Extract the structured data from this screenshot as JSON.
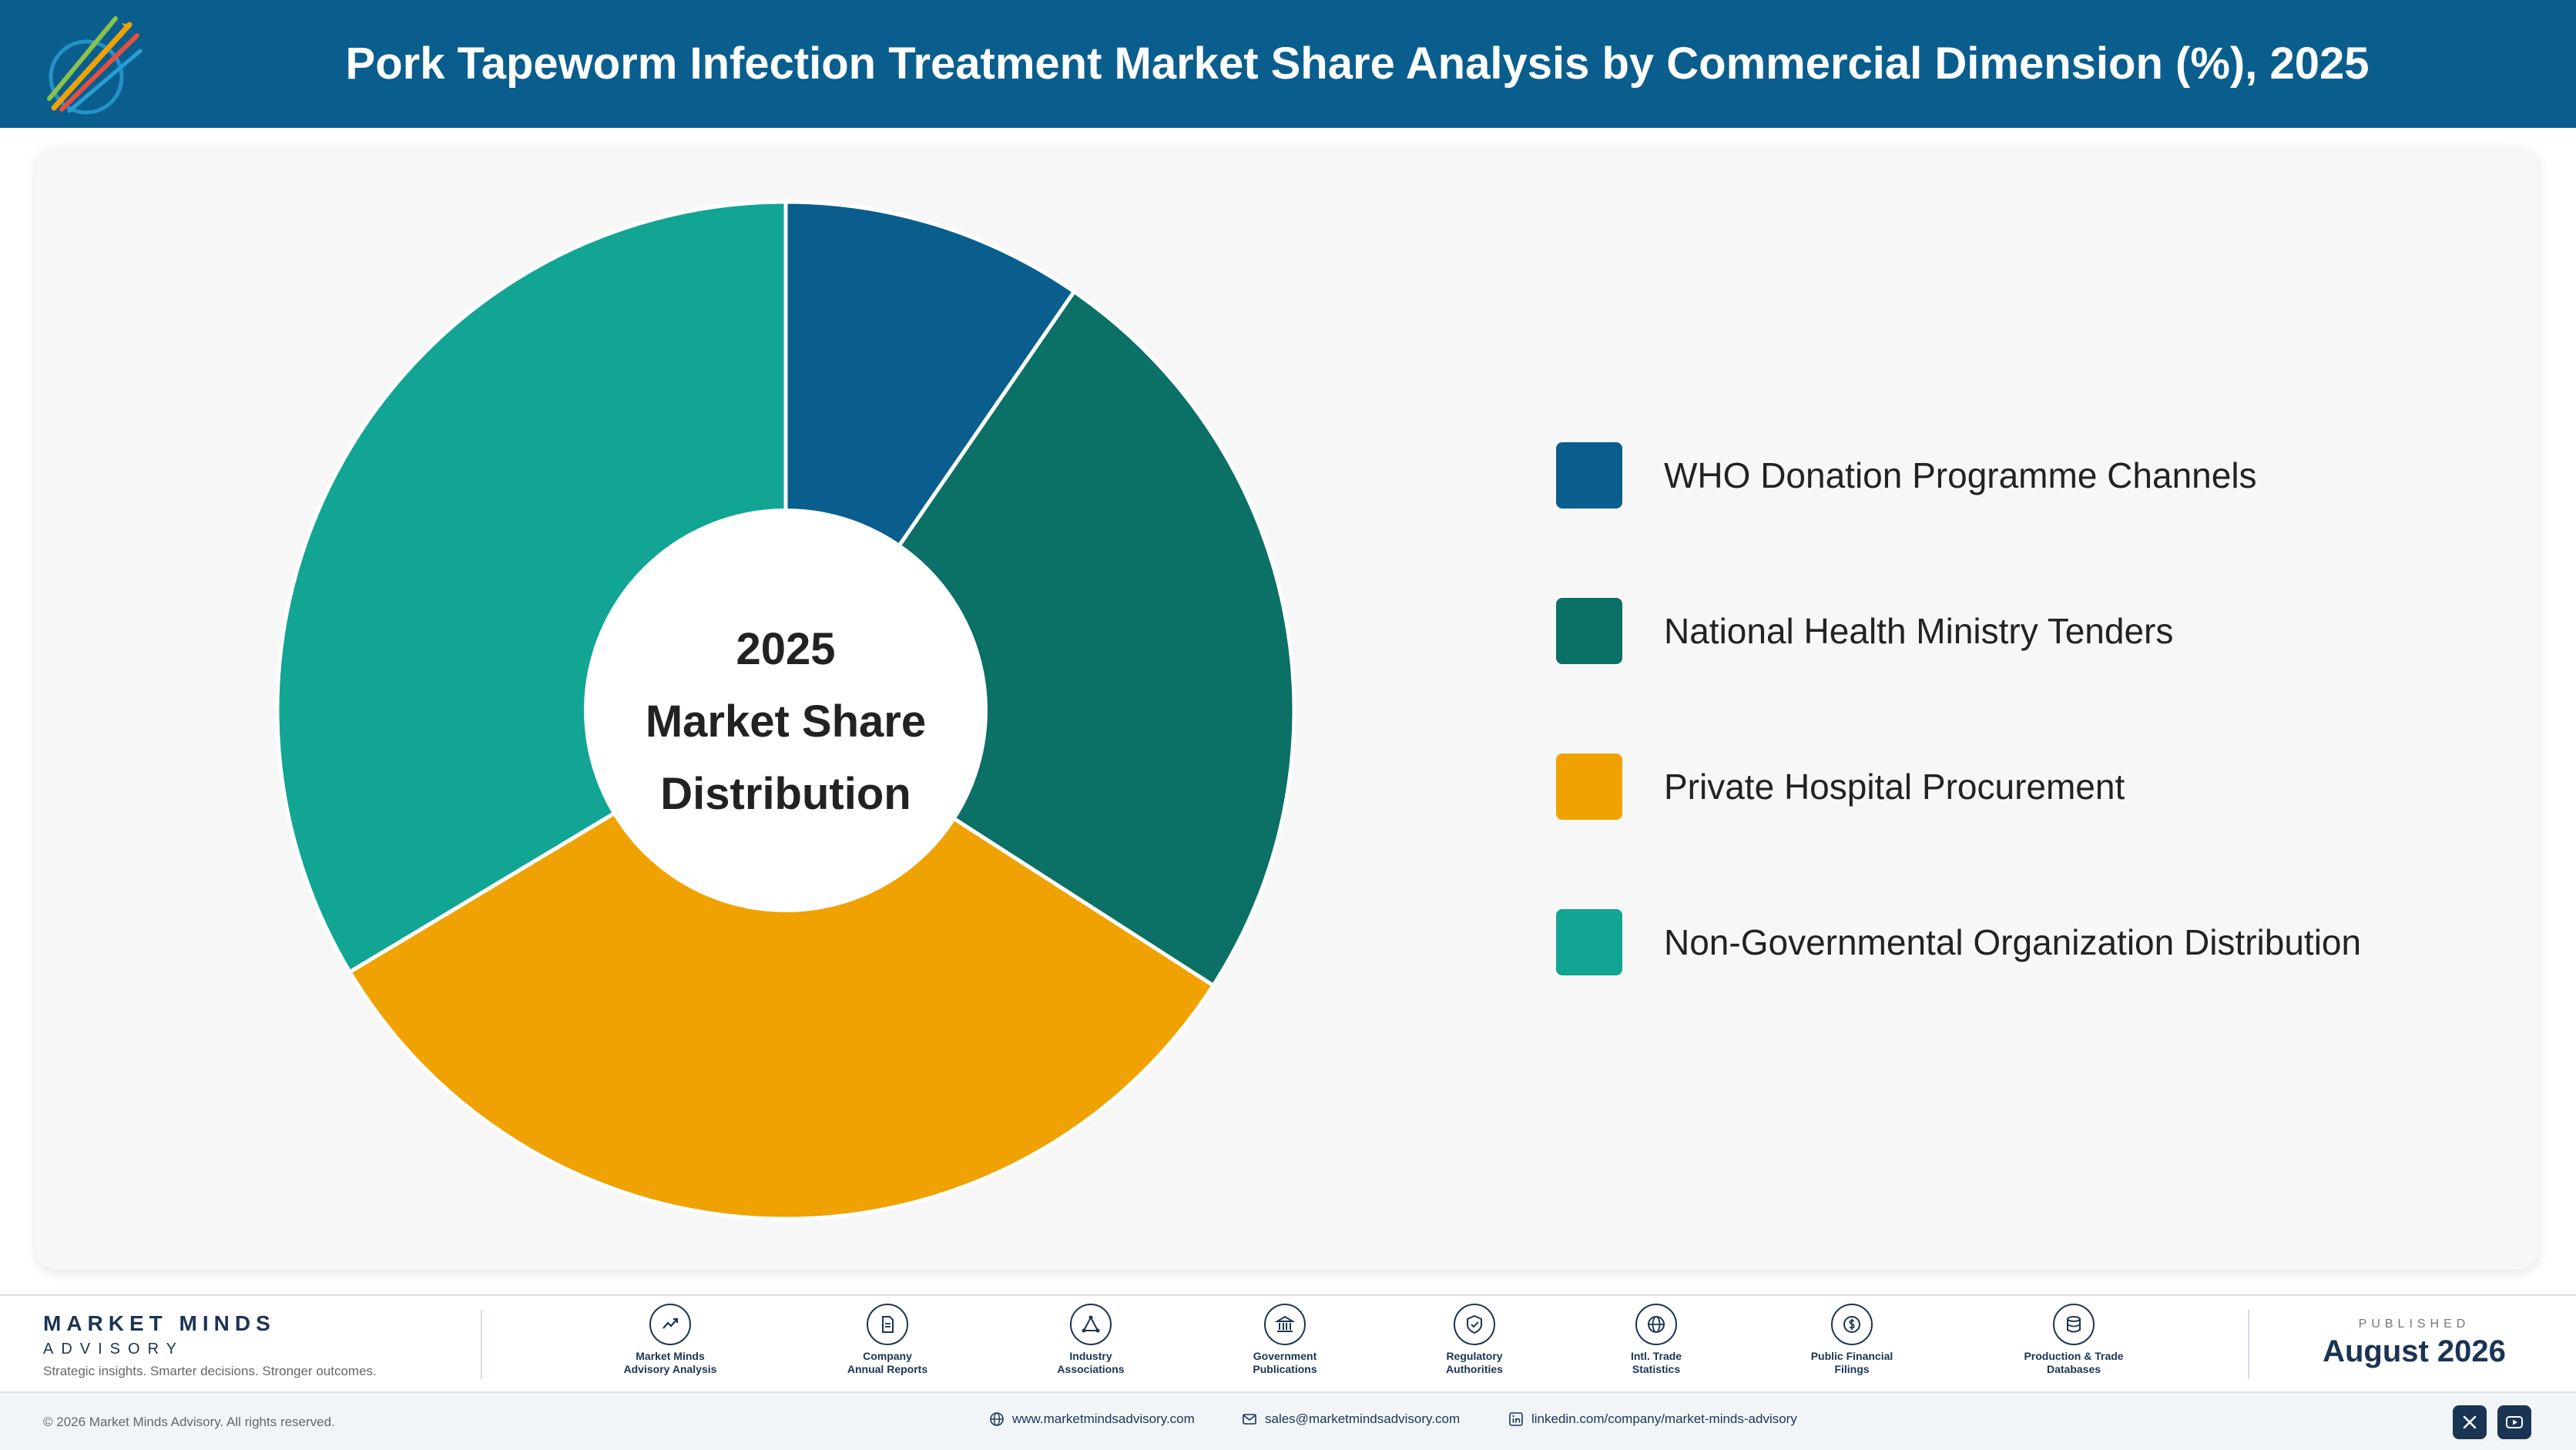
{
  "header": {
    "title": "Pork Tapeworm Infection Treatment Market Share Analysis by Commercial Dimension (%), 2025",
    "logo_icon": "market-minds-logo"
  },
  "chart_data": {
    "type": "pie",
    "variant": "donut",
    "center_label": [
      "2025",
      "Market Share",
      "Distribution"
    ],
    "legend_position": "right",
    "series": [
      {
        "name": "WHO Donation Programme Channels",
        "value": 9.6,
        "color": "#0a5e8e"
      },
      {
        "name": "National Health Ministry Tenders",
        "value": 24.5,
        "color": "#0b7065"
      },
      {
        "name": "Private Hospital Procurement",
        "value": 32.3,
        "color": "#f0a202"
      },
      {
        "name": "Non-Governmental Organization Distribution",
        "value": 33.6,
        "color": "#12a594"
      }
    ]
  },
  "footer": {
    "brand_name": "MARKET MINDS",
    "brand_sub": "ADVISORY",
    "tagline": "Strategic insights. Smarter decisions. Stronger outcomes.",
    "sources": [
      {
        "line1": "Market Minds",
        "line2": "Advisory Analysis",
        "icon": "trend-chart-icon"
      },
      {
        "line1": "Company",
        "line2": "Annual Reports",
        "icon": "document-icon"
      },
      {
        "line1": "Industry",
        "line2": "Associations",
        "icon": "network-icon"
      },
      {
        "line1": "Government",
        "line2": "Publications",
        "icon": "government-building-icon"
      },
      {
        "line1": "Regulatory",
        "line2": "Authorities",
        "icon": "shield-check-icon"
      },
      {
        "line1": "Intl. Trade",
        "line2": "Statistics",
        "icon": "globe-icon"
      },
      {
        "line1": "Public Financial",
        "line2": "Filings",
        "icon": "coin-icon"
      },
      {
        "line1": "Production & Trade",
        "line2": "Databases",
        "icon": "database-icon"
      }
    ],
    "published_label": "PUBLISHED",
    "published_date": "August 2026",
    "copyright": "© 2026 Market Minds Advisory. All rights reserved.",
    "website": "www.marketmindsadvisory.com",
    "email": "sales@marketmindsadvisory.com",
    "linkedin": "linkedin.com/company/market-minds-advisory"
  }
}
